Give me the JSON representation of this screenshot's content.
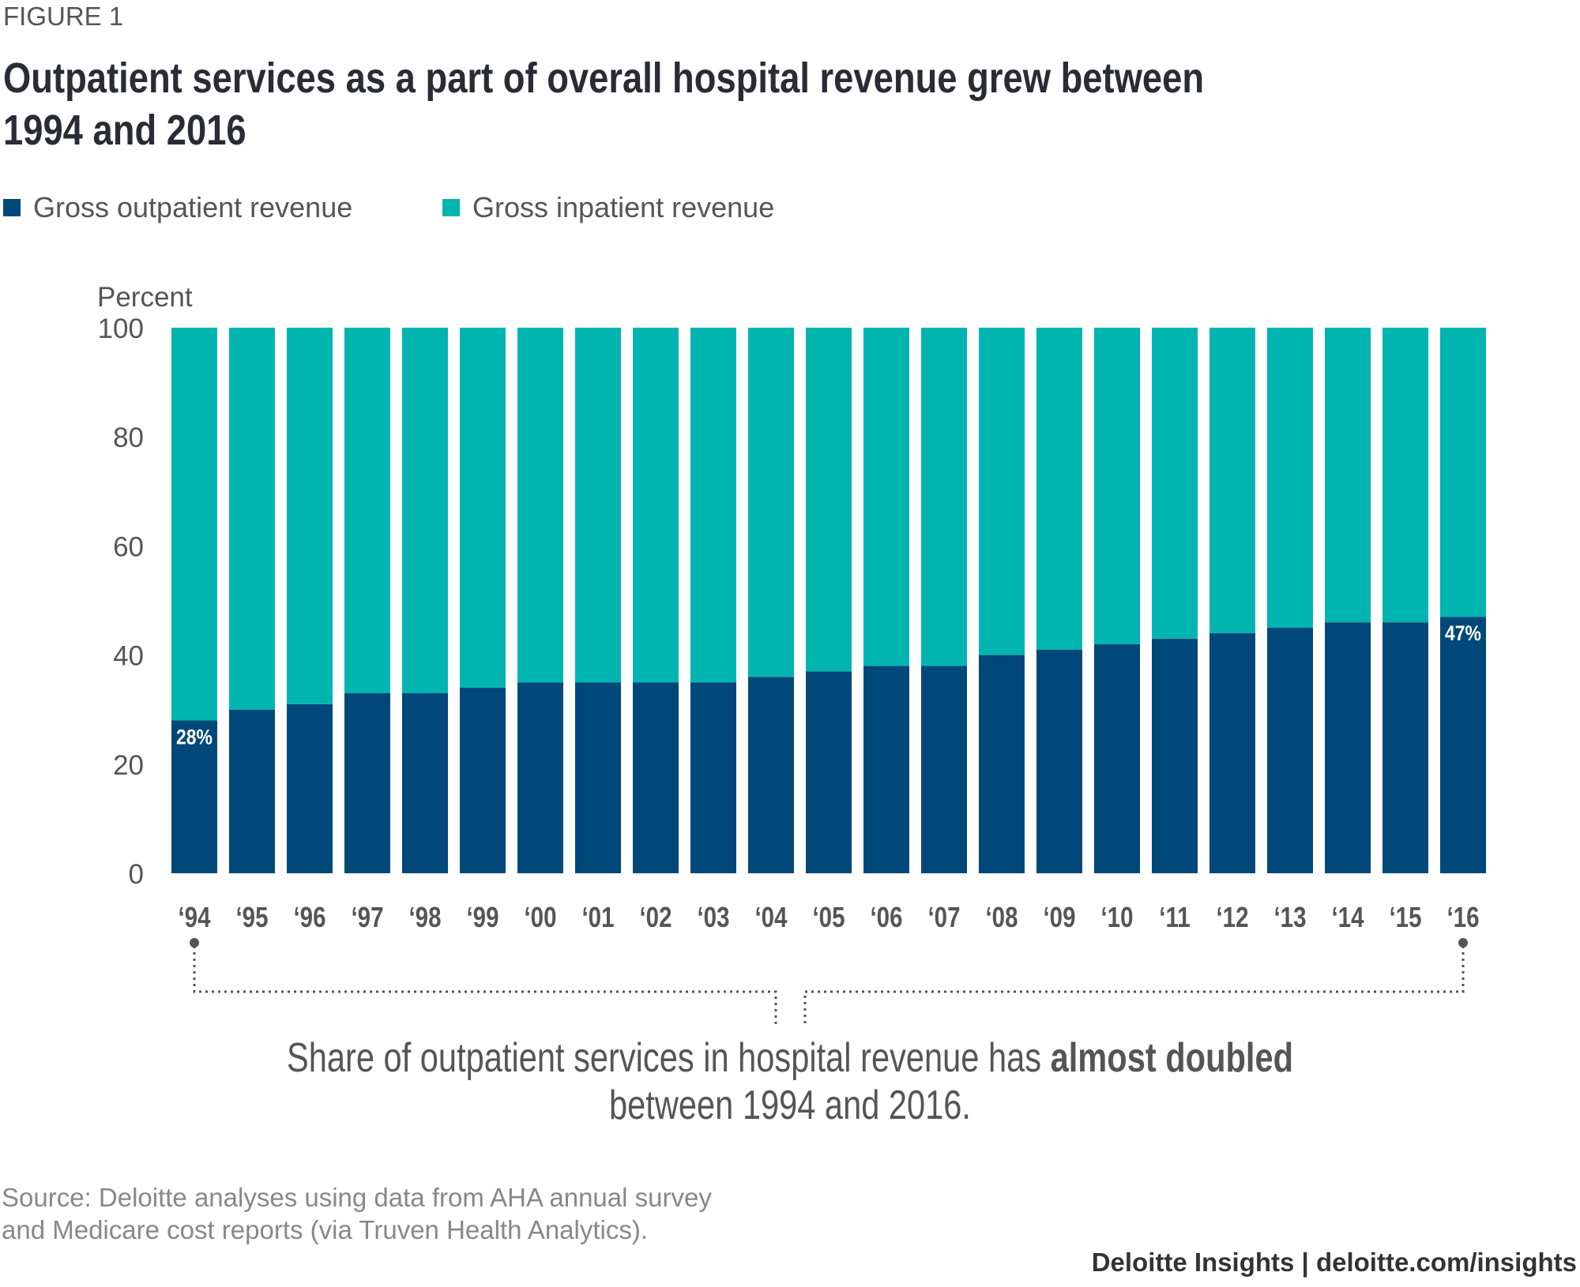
{
  "figure_label": "FIGURE 1",
  "title_line1": "Outpatient services as a part of overall hospital revenue grew between",
  "title_line2": "1994 and 2016",
  "annotation": {
    "line1_prefix": "Share of outpatient services in hospital revenue has ",
    "line1_bold": "almost doubled",
    "line2": "between 1994 and 2016."
  },
  "source_line1": "Source: Deloitte analyses using data from AHA annual survey",
  "source_line2": "and Medicare cost reports (via Truven Health Analytics).",
  "footer": "Deloitte Insights | deloitte.com/insights",
  "chart_data": {
    "type": "bar",
    "stacked": true,
    "ylabel": "Percent",
    "ylim": [
      0,
      100
    ],
    "yticks": [
      0,
      20,
      40,
      60,
      80,
      100
    ],
    "grid": false,
    "legend_position": "top-left",
    "categories": [
      "‘94",
      "‘95",
      "‘96",
      "‘97",
      "‘98",
      "‘99",
      "‘00",
      "‘01",
      "‘02",
      "‘03",
      "‘04",
      "‘05",
      "‘06",
      "‘07",
      "‘08",
      "‘09",
      "‘10",
      "‘11",
      "‘12",
      "‘13",
      "‘14",
      "‘15",
      "‘16"
    ],
    "series": [
      {
        "name": "Gross outpatient revenue",
        "color": "#00487a",
        "values": [
          28,
          30,
          31,
          33,
          33,
          34,
          35,
          35,
          35,
          35,
          36,
          37,
          38,
          38,
          40,
          41,
          42,
          43,
          44,
          45,
          46,
          46,
          47
        ]
      },
      {
        "name": "Gross inpatient revenue",
        "color": "#00b4b0",
        "values": [
          72,
          70,
          69,
          67,
          67,
          66,
          65,
          65,
          65,
          65,
          64,
          63,
          62,
          62,
          60,
          59,
          58,
          57,
          56,
          55,
          54,
          54,
          53
        ]
      }
    ],
    "data_labels": [
      {
        "category": "‘94",
        "text": "28%"
      },
      {
        "category": "‘16",
        "text": "47%"
      }
    ]
  }
}
